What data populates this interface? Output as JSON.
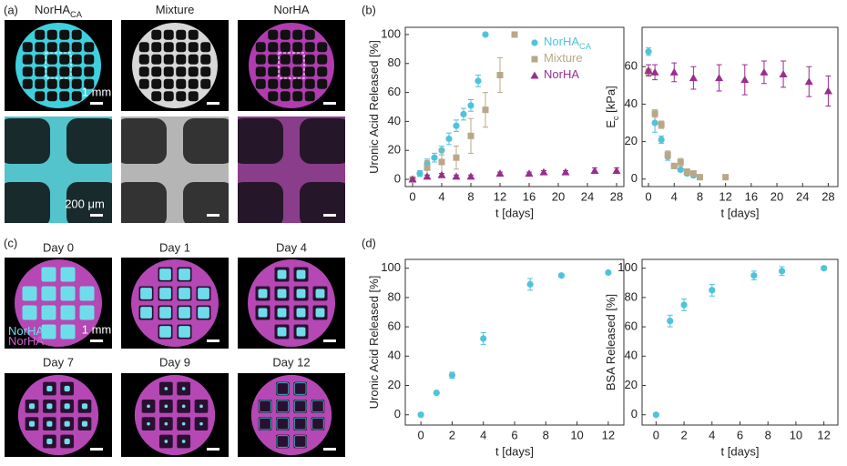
{
  "panels": {
    "a": {
      "label": "(a)",
      "columns": [
        {
          "text": "NorHA",
          "sub": "CA"
        },
        {
          "text": "Mixture"
        },
        {
          "text": "NorHA"
        }
      ],
      "scale_top": "1 mm",
      "scale_bottom": "200 μm"
    },
    "b": {
      "label": "(b)"
    },
    "c": {
      "label": "(c)",
      "days": [
        "Day 0",
        "Day 1",
        "Day 4",
        "Day 7",
        "Day 9",
        "Day 12"
      ],
      "legend": [
        {
          "text": "NorHA",
          "sub": "CA"
        },
        {
          "text": "NorHA"
        }
      ],
      "scale": "1 mm"
    },
    "d": {
      "label": "(d)"
    }
  },
  "chart_data": [
    {
      "type": "scatter",
      "xlabel": "t [days]",
      "ylabel": "Uronic Acid Released [%]",
      "xlim": [
        -1,
        29
      ],
      "ylim": [
        -5,
        105
      ],
      "xticks": [
        0,
        4,
        8,
        12,
        16,
        20,
        24,
        28
      ],
      "yticks": [
        0,
        20,
        40,
        60,
        80,
        100
      ],
      "legend": "upper right",
      "series": [
        {
          "name": "NorHA",
          "name_sub": "CA",
          "color": "#4fc3dc",
          "marker": "circle",
          "x": [
            0,
            1,
            2,
            3,
            4,
            5,
            6,
            7,
            8,
            9,
            10
          ],
          "values": [
            0,
            4,
            11,
            15,
            20,
            28,
            37,
            45,
            51,
            68,
            100
          ],
          "errors": [
            1,
            2,
            3,
            3,
            3,
            4,
            4,
            4,
            4,
            4,
            0
          ]
        },
        {
          "name": "Mixture",
          "color": "#b8a888",
          "marker": "square",
          "x": [
            0,
            2,
            4,
            6,
            8,
            10,
            12,
            14
          ],
          "values": [
            0,
            8,
            12,
            15,
            30,
            48,
            72,
            100
          ],
          "errors": [
            1,
            5,
            8,
            8,
            12,
            12,
            12,
            0
          ]
        },
        {
          "name": "NorHA",
          "color": "#9b2d8e",
          "marker": "triangle",
          "x": [
            0,
            2,
            4,
            6,
            8,
            12,
            16,
            18,
            21,
            25,
            28
          ],
          "values": [
            0,
            2,
            3,
            2,
            2,
            4,
            4,
            5,
            5,
            6,
            6
          ],
          "errors": [
            1,
            1,
            1,
            1,
            1,
            1,
            1,
            1,
            1,
            2,
            2
          ]
        }
      ]
    },
    {
      "type": "scatter",
      "xlabel": "t [days]",
      "ylabel": "E",
      "ylabel_sub": "c",
      "ylabel_rest": " [kPa]",
      "xlim": [
        -1,
        29.5
      ],
      "ylim": [
        -4,
        81
      ],
      "xticks": [
        0,
        4,
        8,
        12,
        16,
        20,
        24,
        28
      ],
      "yticks": [
        0,
        20,
        40,
        60
      ],
      "series": [
        {
          "name": "NorHA",
          "name_sub": "CA",
          "color": "#4fc3dc",
          "marker": "circle",
          "x": [
            0,
            1,
            2,
            3,
            4,
            5,
            6,
            7,
            8
          ],
          "values": [
            68,
            30,
            21,
            12,
            7,
            5,
            3,
            2,
            1
          ],
          "errors": [
            2,
            5,
            2,
            2,
            1,
            1,
            1,
            1,
            1
          ]
        },
        {
          "name": "Mixture",
          "color": "#b8a888",
          "marker": "square",
          "x": [
            0,
            1,
            2,
            3,
            4,
            5,
            6,
            7,
            8,
            12
          ],
          "values": [
            57,
            35,
            29,
            13,
            7,
            9,
            4,
            3,
            1,
            1
          ],
          "errors": [
            2,
            2,
            2,
            2,
            1,
            2,
            1,
            1,
            1,
            1
          ]
        },
        {
          "name": "NorHA",
          "color": "#9b2d8e",
          "marker": "triangle",
          "x": [
            0,
            1,
            4,
            7,
            11,
            15,
            18,
            21,
            25,
            28
          ],
          "values": [
            58,
            57,
            57,
            54,
            54,
            53,
            57,
            56,
            52,
            47
          ],
          "errors": [
            3,
            4,
            5,
            6,
            7,
            8,
            6,
            7,
            8,
            8
          ]
        }
      ]
    },
    {
      "type": "scatter",
      "xlabel": "t [days]",
      "ylabel": "Uronic Acid Released [%]",
      "xlim": [
        -1,
        13
      ],
      "ylim": [
        -7,
        106
      ],
      "xticks": [
        0,
        2,
        4,
        6,
        8,
        10,
        12
      ],
      "yticks": [
        0,
        20,
        40,
        60,
        80,
        100
      ],
      "series": [
        {
          "name": "NorHA",
          "name_sub": "CA",
          "color": "#4fc3dc",
          "marker": "circle",
          "x": [
            0,
            1,
            2,
            4,
            7,
            9,
            12
          ],
          "values": [
            0,
            15,
            27,
            52,
            89,
            95,
            97
          ],
          "errors": [
            1,
            1,
            2,
            4,
            4,
            1,
            1
          ]
        }
      ]
    },
    {
      "type": "scatter",
      "xlabel": "t [days]",
      "ylabel": "BSA Released [%]",
      "xlim": [
        -1,
        13
      ],
      "ylim": [
        -7,
        106
      ],
      "xticks": [
        0,
        2,
        4,
        6,
        8,
        10,
        12
      ],
      "yticks": [
        0,
        20,
        40,
        60,
        80,
        100
      ],
      "series": [
        {
          "name": "NorHA",
          "name_sub": "CA",
          "color": "#4fc3dc",
          "marker": "circle",
          "x": [
            0,
            1,
            2,
            4,
            7,
            9,
            12
          ],
          "values": [
            0,
            64,
            75,
            85,
            95,
            98,
            100
          ],
          "errors": [
            1,
            4,
            4,
            4,
            3,
            3,
            1
          ]
        }
      ]
    }
  ]
}
